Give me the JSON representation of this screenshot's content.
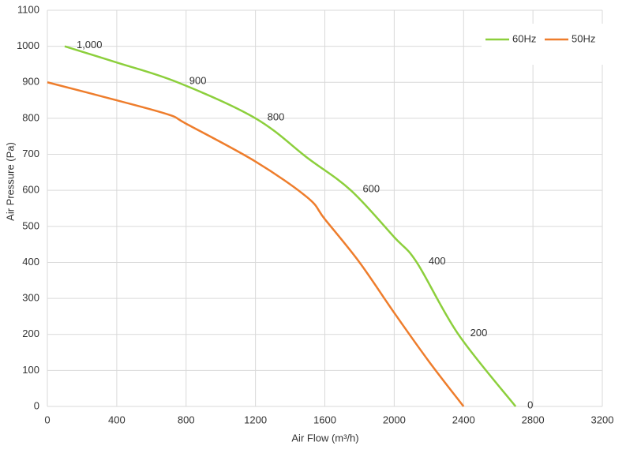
{
  "chart_data": {
    "type": "line",
    "x_label": "Air Flow  (m³/h)",
    "y_label": "Air Pressure  (Pa)",
    "xlim": [
      0,
      3200
    ],
    "xticks": [
      0,
      400,
      800,
      1200,
      1600,
      2000,
      2400,
      2800,
      3200
    ],
    "ylim": [
      0,
      1100
    ],
    "yticks": [
      0,
      100,
      200,
      300,
      400,
      500,
      600,
      700,
      800,
      900,
      1000,
      1100
    ],
    "grid": true,
    "legend": "top-right",
    "series": [
      {
        "name": "60Hz",
        "color": "#8ccf3c",
        "x": [
          100,
          400,
          750,
          1200,
          1500,
          1750,
          2000,
          2130,
          2370,
          2700
        ],
        "values": [
          1000,
          955,
          900,
          800,
          690,
          600,
          470,
          400,
          200,
          0
        ],
        "value_labels": [
          "1,000",
          null,
          "900",
          "800",
          null,
          "600",
          null,
          "400",
          "200",
          "0"
        ]
      },
      {
        "name": "50Hz",
        "color": "#ee7d2c",
        "x": [
          0,
          400,
          700,
          800,
          1200,
          1500,
          1600,
          1800,
          2000,
          2200,
          2400
        ],
        "values": [
          900,
          850,
          810,
          785,
          680,
          580,
          520,
          400,
          260,
          125,
          0
        ]
      }
    ]
  }
}
